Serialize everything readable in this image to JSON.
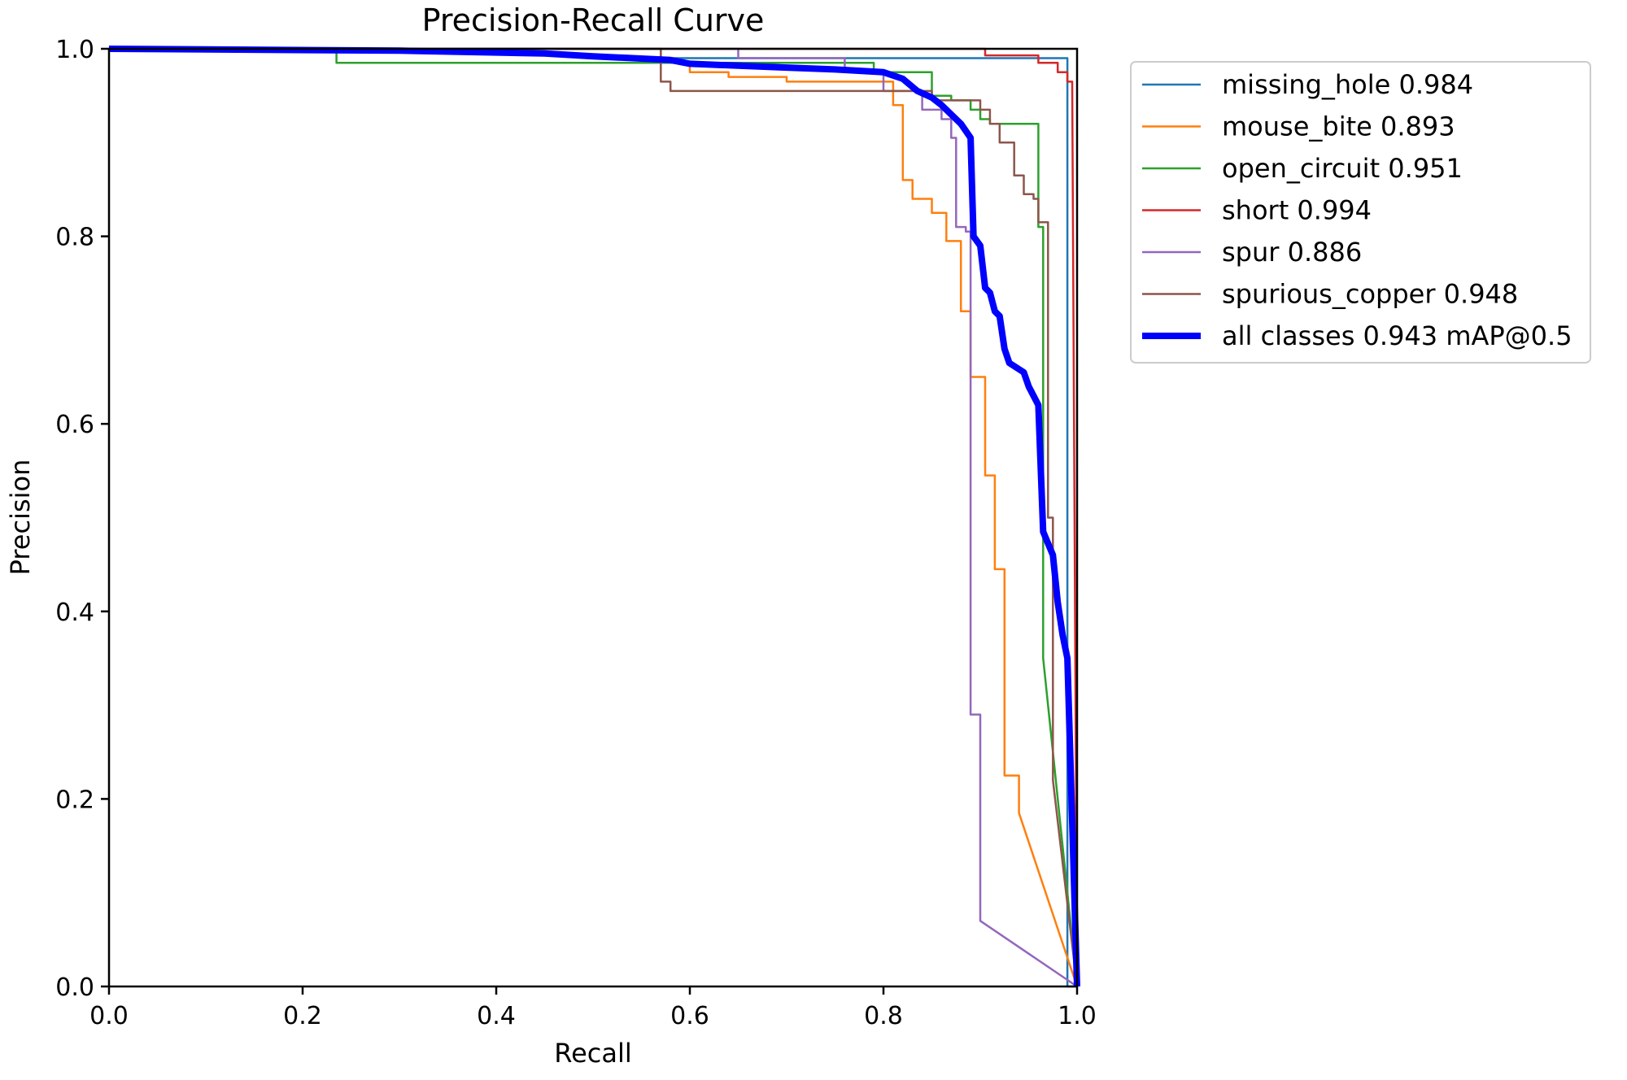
{
  "chart_data": {
    "type": "line",
    "title": "Precision-Recall Curve",
    "xlabel": "Recall",
    "ylabel": "Precision",
    "xlim": [
      0,
      1
    ],
    "ylim": [
      0,
      1
    ],
    "xticks": [
      "0.0",
      "0.2",
      "0.4",
      "0.6",
      "0.8",
      "1.0"
    ],
    "yticks": [
      "0.0",
      "0.2",
      "0.4",
      "0.6",
      "0.8",
      "1.0"
    ],
    "grid": false,
    "legend_position": "outside-top-right",
    "series": [
      {
        "name": "missing_hole 0.984",
        "color": "#1f77b4",
        "width": "thin",
        "points": [
          [
            0,
            1
          ],
          [
            0.57,
            1
          ],
          [
            0.57,
            0.99
          ],
          [
            0.99,
            0.99
          ],
          [
            0.99,
            0.0
          ],
          [
            1.0,
            0.0
          ]
        ]
      },
      {
        "name": "mouse_bite 0.893",
        "color": "#ff7f0e",
        "width": "thin",
        "points": [
          [
            0,
            1
          ],
          [
            0.57,
            1
          ],
          [
            0.57,
            0.985
          ],
          [
            0.6,
            0.985
          ],
          [
            0.6,
            0.975
          ],
          [
            0.64,
            0.975
          ],
          [
            0.64,
            0.97
          ],
          [
            0.7,
            0.97
          ],
          [
            0.7,
            0.965
          ],
          [
            0.81,
            0.965
          ],
          [
            0.81,
            0.94
          ],
          [
            0.82,
            0.94
          ],
          [
            0.82,
            0.86
          ],
          [
            0.83,
            0.86
          ],
          [
            0.83,
            0.84
          ],
          [
            0.85,
            0.84
          ],
          [
            0.85,
            0.825
          ],
          [
            0.865,
            0.825
          ],
          [
            0.865,
            0.795
          ],
          [
            0.88,
            0.795
          ],
          [
            0.88,
            0.72
          ],
          [
            0.89,
            0.72
          ],
          [
            0.89,
            0.65
          ],
          [
            0.905,
            0.65
          ],
          [
            0.905,
            0.545
          ],
          [
            0.915,
            0.545
          ],
          [
            0.915,
            0.445
          ],
          [
            0.925,
            0.445
          ],
          [
            0.925,
            0.225
          ],
          [
            0.94,
            0.225
          ],
          [
            0.94,
            0.185
          ],
          [
            1.0,
            0.0
          ]
        ]
      },
      {
        "name": "open_circuit 0.951",
        "color": "#2ca02c",
        "width": "thin",
        "points": [
          [
            0,
            1
          ],
          [
            0.235,
            1
          ],
          [
            0.235,
            0.985
          ],
          [
            0.79,
            0.985
          ],
          [
            0.79,
            0.975
          ],
          [
            0.85,
            0.975
          ],
          [
            0.85,
            0.95
          ],
          [
            0.87,
            0.95
          ],
          [
            0.87,
            0.945
          ],
          [
            0.89,
            0.945
          ],
          [
            0.89,
            0.935
          ],
          [
            0.9,
            0.935
          ],
          [
            0.9,
            0.925
          ],
          [
            0.91,
            0.925
          ],
          [
            0.91,
            0.92
          ],
          [
            0.96,
            0.92
          ],
          [
            0.96,
            0.81
          ],
          [
            0.965,
            0.81
          ],
          [
            0.965,
            0.35
          ],
          [
            0.975,
            0.25
          ],
          [
            1.0,
            0.0
          ]
        ]
      },
      {
        "name": "short 0.994",
        "color": "#d62728",
        "width": "thin",
        "points": [
          [
            0,
            1
          ],
          [
            0.905,
            1
          ],
          [
            0.905,
            0.993
          ],
          [
            0.96,
            0.993
          ],
          [
            0.96,
            0.985
          ],
          [
            0.98,
            0.985
          ],
          [
            0.98,
            0.975
          ],
          [
            0.99,
            0.975
          ],
          [
            0.99,
            0.965
          ],
          [
            0.995,
            0.965
          ],
          [
            1.0,
            0.0
          ]
        ]
      },
      {
        "name": "spur 0.886",
        "color": "#9467bd",
        "width": "thin",
        "points": [
          [
            0,
            1
          ],
          [
            0.65,
            1
          ],
          [
            0.65,
            0.99
          ],
          [
            0.76,
            0.99
          ],
          [
            0.76,
            0.975
          ],
          [
            0.8,
            0.975
          ],
          [
            0.8,
            0.955
          ],
          [
            0.84,
            0.955
          ],
          [
            0.84,
            0.935
          ],
          [
            0.86,
            0.935
          ],
          [
            0.86,
            0.925
          ],
          [
            0.87,
            0.925
          ],
          [
            0.87,
            0.905
          ],
          [
            0.875,
            0.905
          ],
          [
            0.875,
            0.81
          ],
          [
            0.885,
            0.81
          ],
          [
            0.885,
            0.805
          ],
          [
            0.89,
            0.805
          ],
          [
            0.89,
            0.29
          ],
          [
            0.9,
            0.29
          ],
          [
            0.9,
            0.07
          ],
          [
            1.0,
            0.0
          ]
        ]
      },
      {
        "name": "spurious_copper 0.948",
        "color": "#8c564b",
        "width": "thin",
        "points": [
          [
            0,
            1
          ],
          [
            0.57,
            1
          ],
          [
            0.57,
            0.965
          ],
          [
            0.58,
            0.965
          ],
          [
            0.58,
            0.955
          ],
          [
            0.85,
            0.955
          ],
          [
            0.85,
            0.945
          ],
          [
            0.9,
            0.945
          ],
          [
            0.9,
            0.935
          ],
          [
            0.91,
            0.935
          ],
          [
            0.91,
            0.92
          ],
          [
            0.92,
            0.92
          ],
          [
            0.92,
            0.9
          ],
          [
            0.935,
            0.9
          ],
          [
            0.935,
            0.865
          ],
          [
            0.945,
            0.865
          ],
          [
            0.945,
            0.845
          ],
          [
            0.955,
            0.845
          ],
          [
            0.955,
            0.84
          ],
          [
            0.96,
            0.84
          ],
          [
            0.96,
            0.815
          ],
          [
            0.97,
            0.815
          ],
          [
            0.97,
            0.5
          ],
          [
            0.975,
            0.5
          ],
          [
            0.975,
            0.22
          ],
          [
            1.0,
            0.0
          ]
        ]
      },
      {
        "name": "all classes 0.943 mAP@0.5",
        "color": "#0000ff",
        "width": "thick",
        "points": [
          [
            0,
            1
          ],
          [
            0.3,
            0.998
          ],
          [
            0.45,
            0.995
          ],
          [
            0.5,
            0.992
          ],
          [
            0.58,
            0.988
          ],
          [
            0.6,
            0.984
          ],
          [
            0.65,
            0.982
          ],
          [
            0.7,
            0.98
          ],
          [
            0.75,
            0.978
          ],
          [
            0.8,
            0.975
          ],
          [
            0.82,
            0.968
          ],
          [
            0.835,
            0.955
          ],
          [
            0.85,
            0.948
          ],
          [
            0.86,
            0.94
          ],
          [
            0.87,
            0.93
          ],
          [
            0.88,
            0.92
          ],
          [
            0.89,
            0.905
          ],
          [
            0.893,
            0.8
          ],
          [
            0.9,
            0.79
          ],
          [
            0.905,
            0.745
          ],
          [
            0.91,
            0.74
          ],
          [
            0.915,
            0.72
          ],
          [
            0.92,
            0.715
          ],
          [
            0.925,
            0.68
          ],
          [
            0.93,
            0.665
          ],
          [
            0.945,
            0.655
          ],
          [
            0.95,
            0.64
          ],
          [
            0.96,
            0.62
          ],
          [
            0.965,
            0.485
          ],
          [
            0.975,
            0.46
          ],
          [
            0.98,
            0.41
          ],
          [
            0.985,
            0.375
          ],
          [
            0.99,
            0.35
          ],
          [
            1.0,
            0.0
          ]
        ]
      }
    ]
  }
}
